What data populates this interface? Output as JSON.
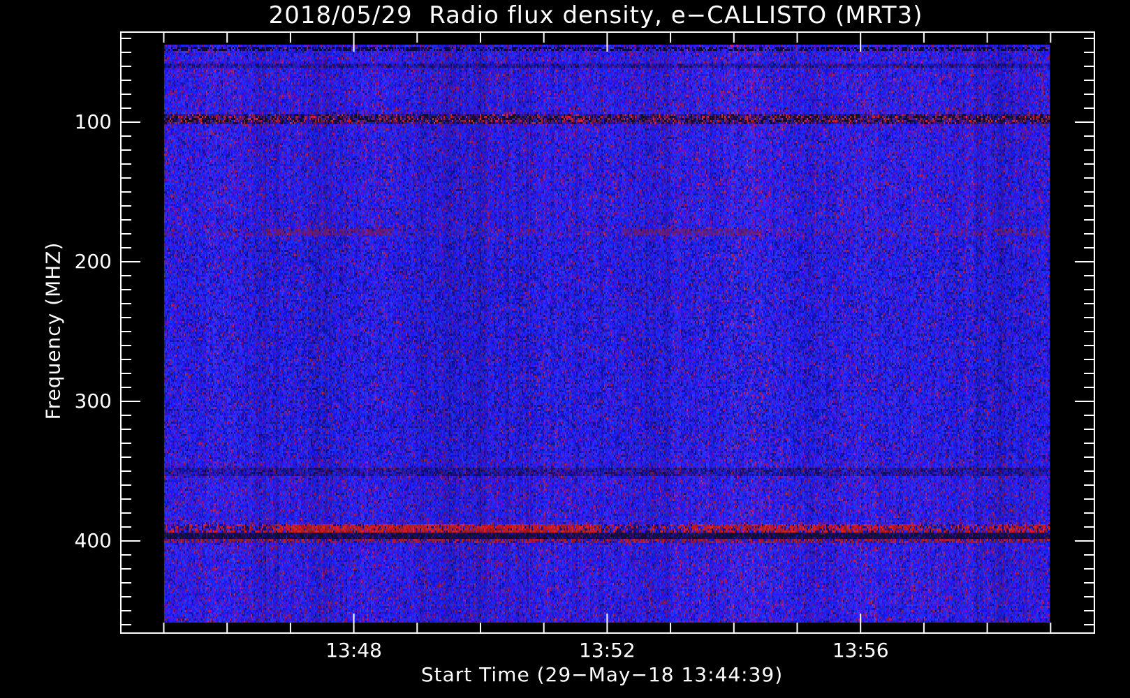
{
  "chart_data": {
    "type": "heatmap",
    "subtype": "radio-spectrogram",
    "title": "2018/05/29  Radio flux density, e−CALLISTO (MRT3)",
    "xlabel": "Start Time (29−May−18 13:44:39)",
    "ylabel": "Frequency (MHZ)",
    "instrument": "e-CALLISTO (MRT3)",
    "date": "2018/05/29",
    "start_time_label": "29-May-18 13:44:39",
    "x_ticks_major": [
      "13:48",
      "13:52",
      "13:56"
    ],
    "x_minor_tick_interval_seconds": 60,
    "x_range_time": [
      "13:45:00",
      "13:59:00"
    ],
    "y_ticks_major": [
      "100",
      "200",
      "300",
      "400"
    ],
    "y_major_values_mhz": [
      100,
      200,
      300,
      400
    ],
    "y_minor_tick_interval_mhz": 10,
    "y_range_mhz": [
      45,
      459
    ],
    "y_axis_inverted": true,
    "grid": false,
    "legend": "none",
    "colormap": "quiet background rendered vivid blue with purple/red noise speckle; RFI in dark red / black",
    "background_color": "#000000",
    "axis_color": "#ffffff",
    "base_blue": "#2323f0",
    "rfi_red": "#c02818",
    "features": [
      {
        "kind": "rfi-band",
        "style": "dark-dashes",
        "freq_mhz": [
          46.5,
          47.5
        ],
        "intensity": "weak",
        "appearance": "dark dashed horizontal line near top edge",
        "base_w": 1,
        "segments": []
      },
      {
        "kind": "rfi-row",
        "style": "faint-dark",
        "freq_mhz": [
          58,
          59
        ],
        "intensity": "very weak",
        "appearance": "slightly darker row",
        "base_w": 1,
        "segments": []
      },
      {
        "kind": "rfi-band",
        "style": "burst-band",
        "freq_mhz": [
          94.5,
          100.5
        ],
        "intensity": "strong",
        "appearance": "dark interference band with intermittent bright red bursts, full duration",
        "base_w": 1,
        "segments": []
      },
      {
        "kind": "rfi-line",
        "style": "faint-red-line",
        "freq_mhz": [
          177,
          179
        ],
        "intensity": "faint",
        "appearance": "dull red intermittent line",
        "base_w": 0.16,
        "segments": [
          [
            0.114,
            0.256,
            0.72
          ],
          [
            0.517,
            0.67,
            0.66
          ],
          [
            0.935,
            1.0,
            0.55
          ]
        ]
      },
      {
        "kind": "rfi-band",
        "style": "faint-dark",
        "freq_mhz": [
          348,
          352
        ],
        "intensity": "very faint",
        "appearance": "slightly darker band",
        "base_w": 1,
        "segments": []
      },
      {
        "kind": "rfi-band",
        "style": "red-band",
        "freq_mhz": [
          388.5,
          393
        ],
        "intensity": "strong",
        "appearance": "bright red emission band, wavy, full duration",
        "base_w": 0.32,
        "segments": [
          [
            0.122,
            0.493,
            0.85
          ],
          [
            0.595,
            0.848,
            0.68
          ],
          [
            0.93,
            1.0,
            0.62
          ]
        ]
      },
      {
        "kind": "rfi-band",
        "style": "dark-band",
        "freq_mhz": [
          394,
          397.5
        ],
        "intensity": "strong",
        "appearance": "dark absorption-like band just below red band",
        "base_w": 1,
        "segments": []
      },
      {
        "kind": "rfi-line",
        "style": "red-line",
        "freq_mhz": [
          398.5,
          399.8
        ],
        "intensity": "medium",
        "appearance": "thin dull red line near 400 MHz",
        "base_w": 0.55,
        "segments": []
      }
    ]
  }
}
